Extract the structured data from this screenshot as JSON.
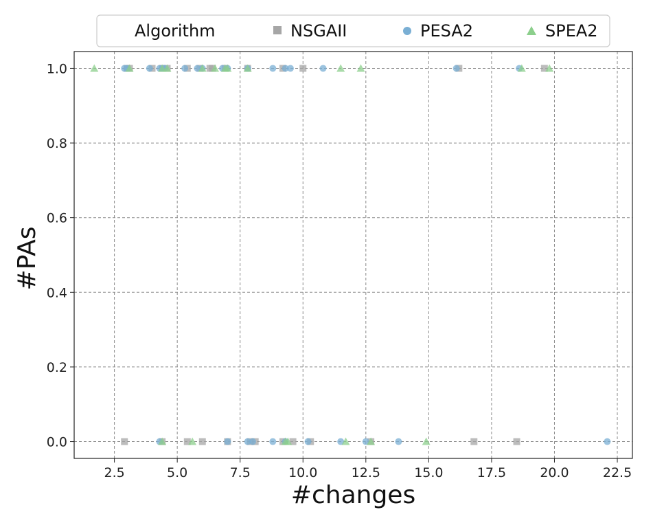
{
  "chart_data": {
    "type": "scatter",
    "title": "",
    "xlabel": "#changes",
    "ylabel": "#PAs",
    "xlim": [
      0.9,
      23.1
    ],
    "ylim": [
      -0.045,
      1.045
    ],
    "xticks": [
      "2.5",
      "5.0",
      "7.5",
      "10.0",
      "12.5",
      "15.0",
      "17.5",
      "20.0",
      "22.5"
    ],
    "yticks": [
      "0.0",
      "0.2",
      "0.4",
      "0.6",
      "0.8",
      "1.0"
    ],
    "grid": true,
    "legend": {
      "title": "Algorithm",
      "placement": "top",
      "entries": [
        "NSGAII",
        "PESA2",
        "SPEA2"
      ]
    },
    "series": [
      {
        "name": "NSGAII",
        "marker": "square",
        "color": "#a6a6a6",
        "points": [
          [
            3.0,
            1
          ],
          [
            3.1,
            1
          ],
          [
            4.0,
            1
          ],
          [
            4.4,
            1
          ],
          [
            4.6,
            1
          ],
          [
            5.4,
            1
          ],
          [
            5.9,
            1
          ],
          [
            6.3,
            1
          ],
          [
            6.4,
            1
          ],
          [
            6.9,
            1
          ],
          [
            7.8,
            1
          ],
          [
            9.2,
            1
          ],
          [
            10.0,
            1
          ],
          [
            16.2,
            1
          ],
          [
            19.6,
            1
          ],
          [
            2.9,
            0
          ],
          [
            4.4,
            0
          ],
          [
            5.4,
            0
          ],
          [
            6.0,
            0
          ],
          [
            7.0,
            0
          ],
          [
            7.9,
            0
          ],
          [
            8.1,
            0
          ],
          [
            9.2,
            0
          ],
          [
            9.6,
            0
          ],
          [
            10.3,
            0
          ],
          [
            12.7,
            0
          ],
          [
            16.8,
            0
          ],
          [
            18.5,
            0
          ]
        ]
      },
      {
        "name": "PESA2",
        "marker": "circle",
        "color": "#7aafd4",
        "points": [
          [
            2.9,
            1
          ],
          [
            3.0,
            1
          ],
          [
            3.9,
            1
          ],
          [
            4.3,
            1
          ],
          [
            4.4,
            1
          ],
          [
            4.5,
            1
          ],
          [
            5.3,
            1
          ],
          [
            5.8,
            1
          ],
          [
            6.0,
            1
          ],
          [
            6.8,
            1
          ],
          [
            7.0,
            1
          ],
          [
            7.8,
            1
          ],
          [
            8.8,
            1
          ],
          [
            9.3,
            1
          ],
          [
            9.5,
            1
          ],
          [
            10.8,
            1
          ],
          [
            16.1,
            1
          ],
          [
            18.6,
            1
          ],
          [
            4.3,
            0
          ],
          [
            7.0,
            0
          ],
          [
            7.8,
            0
          ],
          [
            8.0,
            0
          ],
          [
            8.8,
            0
          ],
          [
            9.3,
            0
          ],
          [
            10.2,
            0
          ],
          [
            11.5,
            0
          ],
          [
            12.5,
            0
          ],
          [
            13.8,
            0
          ],
          [
            22.1,
            0
          ]
        ]
      },
      {
        "name": "SPEA2",
        "marker": "triangle",
        "color": "#8ccf8c",
        "points": [
          [
            1.7,
            1
          ],
          [
            3.1,
            1
          ],
          [
            4.4,
            1
          ],
          [
            4.6,
            1
          ],
          [
            6.0,
            1
          ],
          [
            6.5,
            1
          ],
          [
            6.9,
            1
          ],
          [
            7.0,
            1
          ],
          [
            7.8,
            1
          ],
          [
            11.5,
            1
          ],
          [
            12.3,
            1
          ],
          [
            18.7,
            1
          ],
          [
            19.8,
            1
          ],
          [
            4.4,
            0
          ],
          [
            5.6,
            0
          ],
          [
            9.3,
            0
          ],
          [
            9.4,
            0
          ],
          [
            11.7,
            0
          ],
          [
            12.7,
            0
          ],
          [
            14.9,
            0
          ]
        ]
      }
    ]
  }
}
